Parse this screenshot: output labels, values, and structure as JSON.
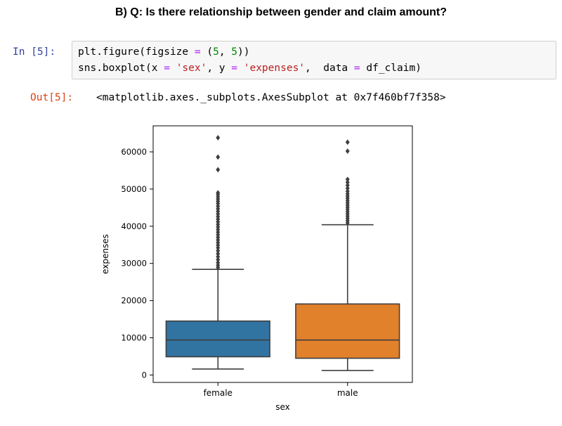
{
  "heading": "B) Q: Is there relationship between gender and claim amount?",
  "cell": {
    "in_prompt": "In [5]:",
    "code": {
      "line1": [
        "plt.figure(figsize ",
        "=",
        " (",
        "5",
        ", ",
        "5",
        "))"
      ],
      "line2": [
        "sns.boxplot(x ",
        "=",
        " ",
        "'sex'",
        ", y ",
        "=",
        " ",
        "'expenses'",
        ",  data ",
        "=",
        " df_claim)"
      ]
    },
    "out_prompt": "Out[5]:",
    "output": "<matplotlib.axes._subplots.AxesSubplot at 0x7f460bf7f358>"
  },
  "chart_data": {
    "type": "box",
    "xlabel": "sex",
    "ylabel": "expenses",
    "ylim": [
      -2000,
      67000
    ],
    "yticks": [
      0,
      10000,
      20000,
      30000,
      40000,
      50000,
      60000
    ],
    "ytick_labels": [
      "0",
      "10000",
      "20000",
      "30000",
      "40000",
      "50000",
      "60000"
    ],
    "categories": [
      "female",
      "male"
    ],
    "colors": {
      "female": "#3274a1",
      "male": "#e1812c",
      "edge": "#3f3f3f"
    },
    "boxes": [
      {
        "name": "female",
        "whisker_low": 1600,
        "q1": 4900,
        "median": 9400,
        "q3": 14500,
        "whisker_high": 28400,
        "outliers": [
          28900,
          29500,
          30200,
          31000,
          31800,
          32600,
          33400,
          34200,
          34900,
          35600,
          36300,
          37000,
          37700,
          38400,
          39100,
          39800,
          40500,
          41200,
          41900,
          42600,
          43300,
          44000,
          44700,
          45400,
          46100,
          46700,
          47300,
          47900,
          48500,
          49000,
          55200,
          58600,
          63800
        ]
      },
      {
        "name": "male",
        "whisker_low": 1200,
        "q1": 4500,
        "median": 9400,
        "q3": 19100,
        "whisker_high": 40400,
        "outliers": [
          40900,
          41500,
          42100,
          42700,
          43300,
          43900,
          44500,
          45100,
          45700,
          46300,
          46900,
          47500,
          48100,
          48700,
          49400,
          50200,
          51000,
          51800,
          52600,
          60200,
          62600
        ]
      }
    ]
  }
}
